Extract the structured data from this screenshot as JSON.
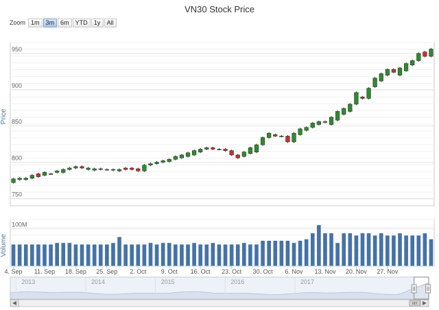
{
  "title": "VN30 Stock Price",
  "zoom": {
    "label": "Zoom",
    "buttons": [
      "1m",
      "3m",
      "6m",
      "YTD",
      "1y",
      "All"
    ],
    "active": "3m"
  },
  "chart_data": [
    {
      "type": "candlestick",
      "ylabel": "Price",
      "y_ticks": [
        750,
        800,
        850,
        900,
        950
      ],
      "ylim": [
        740,
        965
      ],
      "grid": true,
      "colors": {
        "up": "#2e8b2e",
        "down": "#d42a2a",
        "grid": "#e4e4e4"
      },
      "series": [
        {
          "values": [
            [
              772,
              777
            ],
            [
              776,
              778
            ],
            [
              776,
              778
            ],
            [
              778,
              782
            ],
            [
              784,
              780
            ],
            [
              782,
              786
            ],
            [
              784,
              784
            ],
            [
              786,
              788
            ],
            [
              786,
              790
            ],
            [
              790,
              792
            ],
            [
              792,
              794
            ],
            [
              794,
              792
            ],
            [
              790,
              792
            ],
            [
              789,
              791
            ],
            [
              791,
              790
            ],
            [
              790,
              790
            ],
            [
              789,
              790
            ],
            [
              788,
              790
            ],
            [
              792,
              790
            ],
            [
              792,
              790
            ],
            [
              791,
              788
            ],
            [
              788,
              796
            ],
            [
              796,
              798
            ],
            [
              798,
              800
            ],
            [
              800,
              802
            ],
            [
              801,
              804
            ],
            [
              804,
              808
            ],
            [
              806,
              810
            ],
            [
              808,
              813
            ],
            [
              810,
              816
            ],
            [
              814,
              818
            ],
            [
              818,
              820
            ],
            [
              820,
              818
            ],
            [
              818,
              818
            ],
            [
              818,
              816
            ],
            [
              816,
              810
            ],
            [
              810,
              806
            ],
            [
              808,
              814
            ],
            [
              812,
              820
            ],
            [
              814,
              824
            ],
            [
              824,
              834
            ],
            [
              834,
              840
            ],
            [
              838,
              836
            ],
            [
              836,
              836
            ],
            [
              836,
              828
            ],
            [
              828,
              840
            ],
            [
              838,
              846
            ],
            [
              844,
              848
            ],
            [
              848,
              854
            ],
            [
              852,
              856
            ],
            [
              856,
              855
            ],
            [
              852,
              862
            ],
            [
              858,
              870
            ],
            [
              866,
              874
            ],
            [
              870,
              880
            ],
            [
              880,
              896
            ],
            [
              890,
              888
            ],
            [
              888,
              902
            ],
            [
              904,
              916
            ],
            [
              912,
              922
            ],
            [
              920,
              928
            ],
            [
              928,
              924
            ],
            [
              920,
              930
            ],
            [
              926,
              936
            ],
            [
              934,
              940
            ],
            [
              940,
              950
            ],
            [
              952,
              946
            ],
            [
              946,
              956
            ]
          ]
        }
      ]
    },
    {
      "type": "bar",
      "ylabel": "Volume",
      "y_ticks": [
        100
      ],
      "y_tick_suffix": "M",
      "ylim": [
        0,
        125
      ],
      "color": "#4572a7",
      "values": [
        58,
        58,
        58,
        58,
        58,
        58,
        58,
        62,
        62,
        62,
        58,
        58,
        58,
        58,
        58,
        58,
        62,
        78,
        58,
        58,
        58,
        58,
        62,
        58,
        62,
        62,
        58,
        58,
        58,
        62,
        58,
        58,
        62,
        58,
        58,
        58,
        58,
        62,
        58,
        58,
        68,
        68,
        68,
        68,
        68,
        62,
        68,
        72,
        88,
        110,
        88,
        88,
        62,
        88,
        88,
        82,
        88,
        88,
        82,
        88,
        82,
        82,
        88,
        82,
        82,
        82,
        88,
        72
      ]
    }
  ],
  "x_axis": {
    "labels": [
      "4. Sep",
      "11. Sep",
      "18. Sep",
      "25. Sep",
      "2. Oct",
      "9. Oct",
      "16. Oct",
      "23. Oct",
      "30. Oct",
      "6. Nov",
      "13. Nov",
      "20. Nov",
      "27. Nov"
    ]
  },
  "navigator": {
    "labels": [
      "2013",
      "2014",
      "2015",
      "2016",
      "2017"
    ],
    "selection": [
      0.965,
      1.0
    ]
  }
}
